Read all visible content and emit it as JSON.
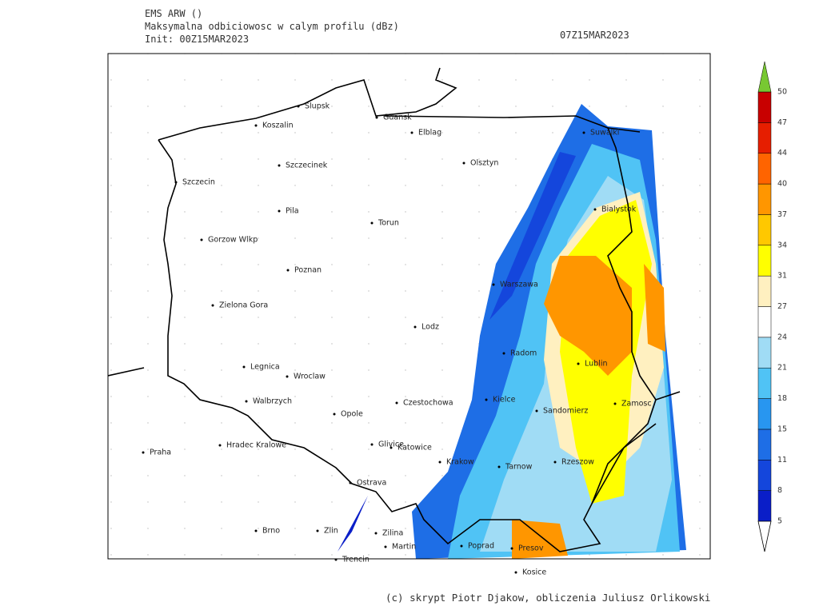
{
  "header": {
    "model": "EMS ARW ()",
    "field": "Maksymalna odbiciowosc w calym profilu (dBz)",
    "init": "Init: 00Z15MAR2023",
    "valid": "07Z15MAR2023"
  },
  "cities": [
    "Slupsk",
    "Koszalin",
    "Gdansk",
    "Elblag",
    "Suwalki",
    "Olsztyn",
    "Szczecinek",
    "Szczecin",
    "Bialystok",
    "Pila",
    "Torun",
    "Gorzow Wlkp",
    "Poznan",
    "Warszawa",
    "Zielona Gora",
    "Lodz",
    "Radom",
    "Lublin",
    "Legnica",
    "Wroclaw",
    "Walbrzych",
    "Czestochowa",
    "Kielce",
    "Zamosc",
    "Opole",
    "Sandomierz",
    "Praha",
    "Hradec Kralowe",
    "Glivice",
    "Katowice",
    "Krakow",
    "Tarnow",
    "Rzeszow",
    "Ostrava",
    "Brno",
    "Zlin",
    "Zilina",
    "Martin",
    "Poprad",
    "Presov",
    "Trencin",
    "Kosice"
  ],
  "colorbar": {
    "levels": [
      5,
      8,
      11,
      15,
      18,
      21,
      24,
      27,
      31,
      34,
      37,
      40,
      44,
      47,
      50
    ],
    "colors": [
      "#0a1ec8",
      "#1446dc",
      "#1e6ee6",
      "#2896f0",
      "#50c3f5",
      "#a0dcf5",
      "#ffffff",
      "#fff0c0",
      "#ffff00",
      "#ffc800",
      "#ff9600",
      "#ff6400",
      "#e61e00",
      "#c80000"
    ],
    "over_color": "#78c832",
    "under_color": "#ffffff"
  },
  "footer": "(c) skrypt Piotr Djakow, obliczenia Juliusz Orlikowski"
}
